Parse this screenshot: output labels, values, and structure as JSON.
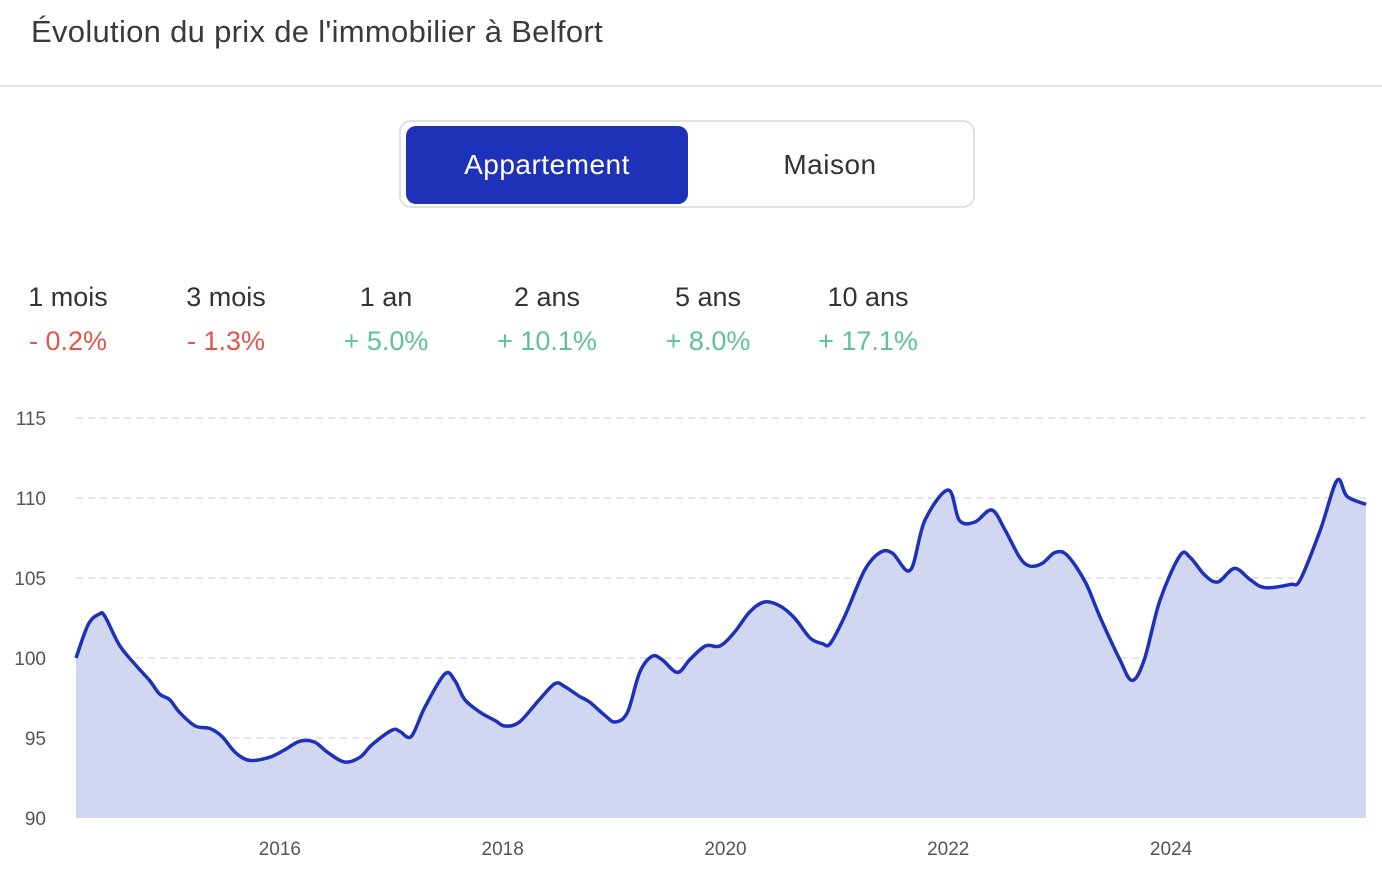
{
  "header": {
    "title": "Évolution du prix de l'immobilier à Belfort"
  },
  "toggle": {
    "options": [
      {
        "label": "Appartement",
        "active": true
      },
      {
        "label": "Maison",
        "active": false
      }
    ]
  },
  "stats": [
    {
      "label": "1 mois",
      "value": "- 0.2%",
      "trend": "negative"
    },
    {
      "label": "3 mois",
      "value": "- 1.3%",
      "trend": "negative"
    },
    {
      "label": "1 an",
      "value": "+ 5.0%",
      "trend": "positive"
    },
    {
      "label": "2 ans",
      "value": "+ 10.1%",
      "trend": "positive"
    },
    {
      "label": "5 ans",
      "value": "+ 8.0%",
      "trend": "positive"
    },
    {
      "label": "10 ans",
      "value": "+ 17.1%",
      "trend": "positive"
    }
  ],
  "colors": {
    "accent": "#1e32b9",
    "fill": "#d1d6f1",
    "negative": "#e0554c",
    "positive": "#5fc196"
  },
  "chart_data": {
    "type": "area",
    "title": "",
    "xlabel": "",
    "ylabel": "",
    "ylim": [
      90,
      115
    ],
    "xlim": [
      2014.17,
      2025.75
    ],
    "yticks": [
      "90",
      "95",
      "100",
      "105",
      "110",
      "115"
    ],
    "xticks": [
      "2016",
      "2018",
      "2020",
      "2022",
      "2024"
    ],
    "grid": "horizontal dashed",
    "series": [
      {
        "x": [
          2014.17,
          2014.28,
          2014.38,
          2014.43,
          2014.56,
          2014.7,
          2014.83,
          2014.92,
          2015.01,
          2015.1,
          2015.24,
          2015.37,
          2015.48,
          2015.6,
          2015.73,
          2015.91,
          2016.04,
          2016.18,
          2016.31,
          2016.43,
          2016.58,
          2016.72,
          2016.83,
          2017.01,
          2017.08,
          2017.18,
          2017.3,
          2017.48,
          2017.57,
          2017.66,
          2017.8,
          2017.93,
          2018.02,
          2018.15,
          2018.33,
          2018.47,
          2018.56,
          2018.69,
          2018.78,
          2018.92,
          2019.01,
          2019.12,
          2019.23,
          2019.34,
          2019.43,
          2019.57,
          2019.68,
          2019.82,
          2019.95,
          2020.08,
          2020.22,
          2020.35,
          2020.49,
          2020.62,
          2020.76,
          2020.87,
          2020.94,
          2021.07,
          2021.25,
          2021.39,
          2021.5,
          2021.66,
          2021.79,
          2022.0,
          2022.1,
          2022.24,
          2022.39,
          2022.51,
          2022.64,
          2022.73,
          2022.84,
          2022.96,
          2023.07,
          2023.23,
          2023.36,
          2023.54,
          2023.65,
          2023.76,
          2023.9,
          2024.08,
          2024.17,
          2024.3,
          2024.42,
          2024.57,
          2024.71,
          2024.84,
          2025.07,
          2025.16,
          2025.34,
          2025.49,
          2025.58,
          2025.75
        ],
        "y": [
          100.0,
          102.1,
          102.75,
          102.6,
          100.8,
          99.6,
          98.6,
          97.75,
          97.4,
          96.6,
          95.75,
          95.6,
          95.1,
          94.1,
          93.6,
          93.8,
          94.25,
          94.8,
          94.75,
          94.1,
          93.5,
          93.8,
          94.6,
          95.5,
          95.4,
          95.1,
          96.9,
          99.0,
          98.6,
          97.4,
          96.6,
          96.1,
          95.75,
          96.0,
          97.4,
          98.4,
          98.2,
          97.6,
          97.25,
          96.4,
          96.0,
          96.6,
          99.1,
          100.1,
          99.9,
          99.1,
          99.9,
          100.75,
          100.75,
          101.6,
          102.9,
          103.5,
          103.25,
          102.5,
          101.25,
          100.9,
          100.9,
          102.6,
          105.5,
          106.6,
          106.55,
          105.5,
          108.6,
          110.5,
          108.6,
          108.5,
          109.25,
          108.0,
          106.3,
          105.75,
          105.9,
          106.6,
          106.4,
          104.75,
          102.6,
          99.9,
          98.6,
          99.9,
          103.6,
          106.4,
          106.3,
          105.2,
          104.75,
          105.6,
          104.9,
          104.4,
          104.6,
          104.9,
          108.0,
          111.1,
          110.1,
          109.6
        ]
      }
    ]
  }
}
